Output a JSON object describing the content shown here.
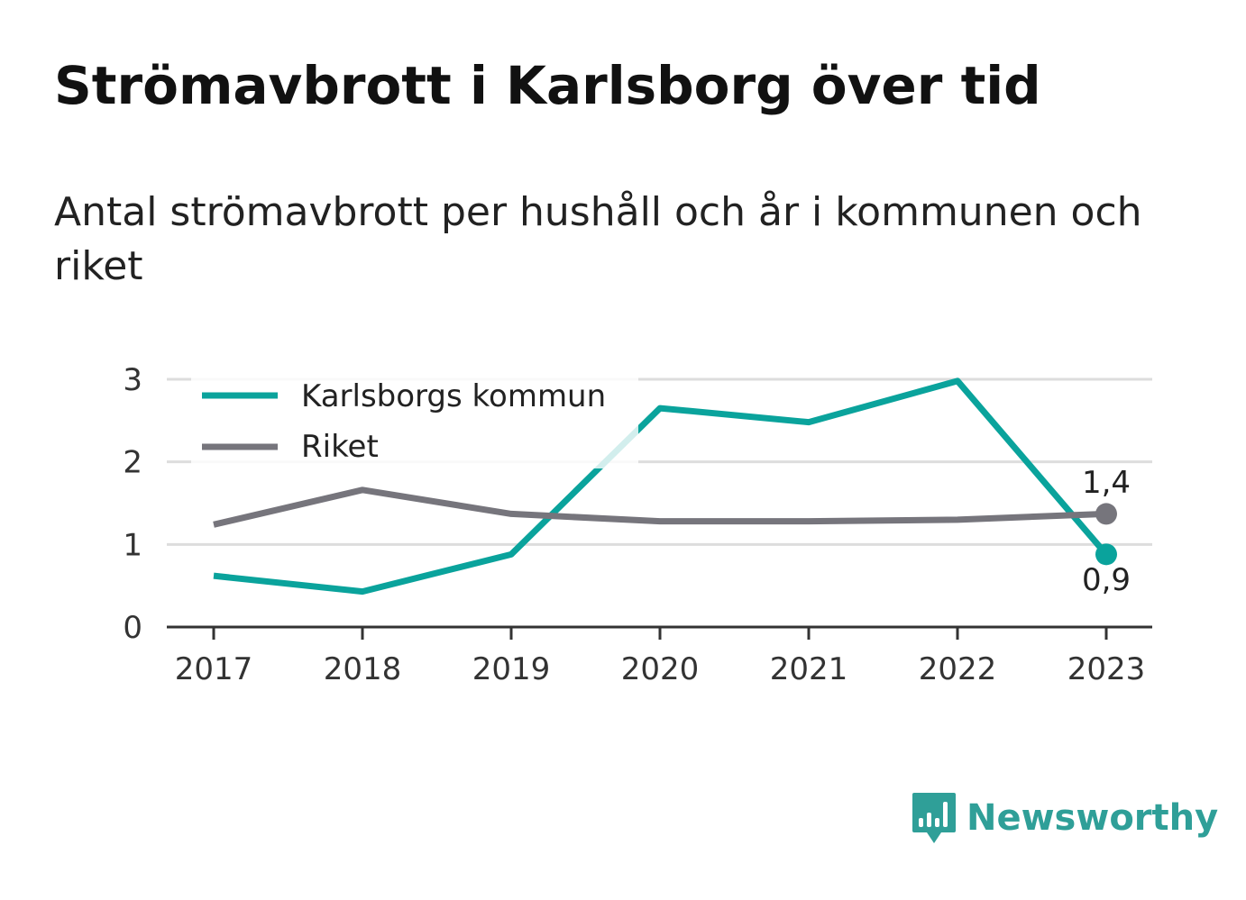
{
  "header": {
    "title": "Strömavbrott i Karlsborg över tid",
    "subtitle": "Antal strömavbrott per hushåll och år i kommunen och riket"
  },
  "brand": {
    "name": "Newsworthy",
    "icon": "newsworthy-logo-icon",
    "color": "#2f9f98"
  },
  "chart_data": {
    "type": "line",
    "x": [
      "2017",
      "2018",
      "2019",
      "2020",
      "2021",
      "2022",
      "2023"
    ],
    "series": [
      {
        "name": "Karlsborgs kommun",
        "color": "#0aa39c",
        "values": [
          0.62,
          0.43,
          0.88,
          2.65,
          2.48,
          2.98,
          0.88
        ],
        "end_label": "0,9"
      },
      {
        "name": "Riket",
        "color": "#76757c",
        "values": [
          1.24,
          1.66,
          1.37,
          1.28,
          1.28,
          1.3,
          1.37
        ],
        "end_label": "1,4"
      }
    ],
    "yticks": [
      "0",
      "1",
      "2",
      "3"
    ],
    "ylim": [
      0,
      3
    ],
    "grid": true,
    "legend": "top-left"
  }
}
